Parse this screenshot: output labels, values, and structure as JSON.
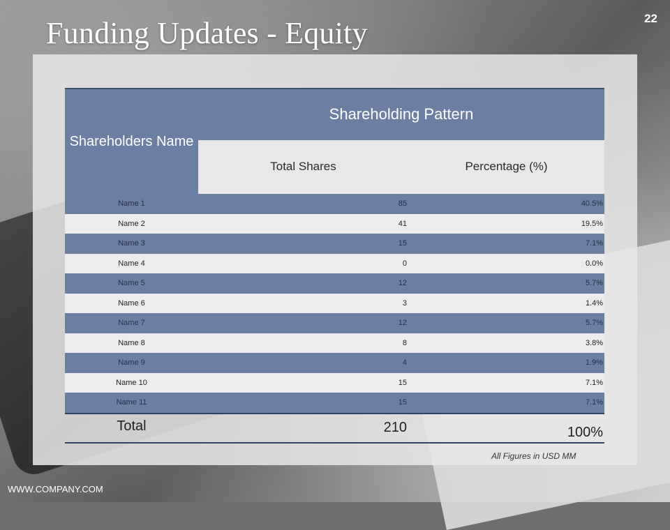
{
  "slide": {
    "title": "Funding Updates - Equity",
    "page_number": "22",
    "website": "WWW.COMPANY.COM",
    "footnote": "All Figures in USD MM"
  },
  "table": {
    "name_header": "Shareholders Name",
    "group_header": "Shareholding Pattern",
    "shares_header": "Total Shares",
    "percent_header": "Percentage (%)",
    "rows": [
      {
        "name": "Name 1",
        "shares": "85",
        "percent": "40.5%"
      },
      {
        "name": "Name 2",
        "shares": "41",
        "percent": "19.5%"
      },
      {
        "name": "Name 3",
        "shares": "15",
        "percent": "7.1%"
      },
      {
        "name": "Name 4",
        "shares": "0",
        "percent": "0.0%"
      },
      {
        "name": "Name 5",
        "shares": "12",
        "percent": "5.7%"
      },
      {
        "name": "Name 6",
        "shares": "3",
        "percent": "1.4%"
      },
      {
        "name": "Name 7",
        "shares": "12",
        "percent": "5.7%"
      },
      {
        "name": "Name 8",
        "shares": "8",
        "percent": "3.8%"
      },
      {
        "name": "Name 9",
        "shares": "4",
        "percent": "1.9%"
      },
      {
        "name": "Name 10",
        "shares": "15",
        "percent": "7.1%"
      },
      {
        "name": "Name 11",
        "shares": "15",
        "percent": "7.1%"
      }
    ],
    "total": {
      "label": "Total",
      "shares": "210",
      "percent": "100%"
    }
  },
  "colors": {
    "header_fill": "#6a7fa1",
    "band_fill": "#6a7fa1",
    "rule": "#2f4468"
  }
}
